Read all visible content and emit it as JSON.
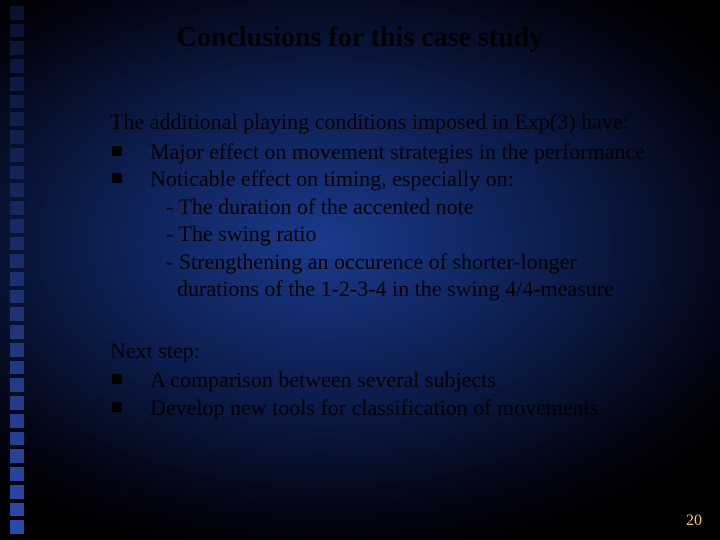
{
  "slide": {
    "title": "Conclusions for this case study",
    "page_number": "20",
    "sidebar": {
      "square_count": 30,
      "top_color": "#0a1230",
      "bottom_color": "#2a4aa8"
    },
    "block1": {
      "lead": "The additional playing conditions imposed in Exp(3) have:",
      "bullets": [
        "Major effect on movement strategies in the performance",
        "Noticable effect on timing, especially on:"
      ],
      "sublines": [
        "- The duration of the accented note",
        "- The swing ratio",
        "- Strengthening an occurence of shorter-longer",
        "  durations of the 1-2-3-4 in the swing 4/4-measure"
      ]
    },
    "block2": {
      "lead": "Next step:",
      "bullets": [
        "A comparison between several subjects",
        "Develop new tools for classification of movements"
      ]
    },
    "colors": {
      "text": "#000000",
      "pagenum": "#f5d040"
    }
  }
}
